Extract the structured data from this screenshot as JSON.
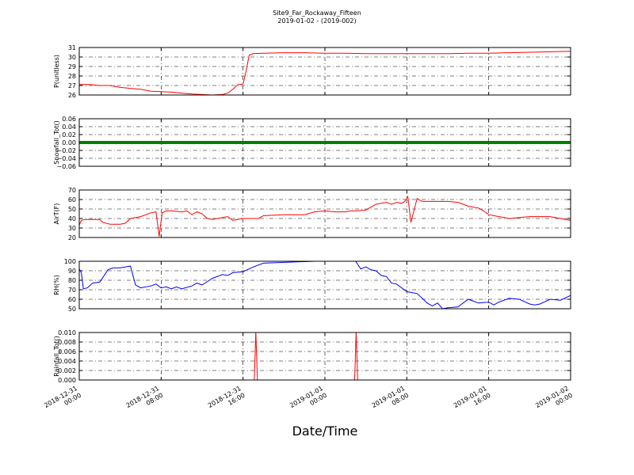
{
  "chart_data": {
    "type": "line",
    "title": "Site9_Far_Rockaway_Fifteen",
    "subtitle": "2019-01-02 - (2019-002)",
    "xlabel": "Date/Time",
    "grid": true,
    "x_range_hours": [
      0,
      48
    ],
    "x_ticks": [
      {
        "h": 0,
        "line1": "2018-12-31",
        "line2": "00:00"
      },
      {
        "h": 8,
        "line1": "2018-12-31",
        "line2": "08:00"
      },
      {
        "h": 16,
        "line1": "2018-12-31",
        "line2": "16:00"
      },
      {
        "h": 24,
        "line1": "2019-01-01",
        "line2": "00:00"
      },
      {
        "h": 32,
        "line1": "2019-01-01",
        "line2": "08:00"
      },
      {
        "h": 40,
        "line1": "2019-01-01",
        "line2": "16:00"
      },
      {
        "h": 48,
        "line1": "2019-01-02",
        "line2": "00:00"
      }
    ],
    "panels": [
      {
        "ylabel": "P(unitless)",
        "ylim": [
          26,
          31
        ],
        "yticks": [
          "26",
          "27",
          "28",
          "29",
          "30",
          "31"
        ],
        "color": "#ff0000",
        "style": "line",
        "x": [
          0,
          1,
          2,
          3,
          4,
          5,
          6,
          7,
          8,
          9,
          10,
          11,
          12,
          13,
          14,
          14.5,
          15,
          15.5,
          16,
          16.3,
          16.6,
          17,
          18,
          20,
          22,
          24,
          26,
          28,
          30,
          32,
          34,
          36,
          38,
          40,
          42,
          44,
          46,
          48
        ],
        "y": [
          27.1,
          27.1,
          27.0,
          27.0,
          26.8,
          26.7,
          26.6,
          26.4,
          26.35,
          26.3,
          26.2,
          26.1,
          26.05,
          26.0,
          26.05,
          26.2,
          26.6,
          27.1,
          27.15,
          28.5,
          30.2,
          30.35,
          30.4,
          30.45,
          30.45,
          30.4,
          30.4,
          30.35,
          30.35,
          30.35,
          30.35,
          30.35,
          30.4,
          30.4,
          30.45,
          30.5,
          30.55,
          30.6
        ]
      },
      {
        "ylabel": "Snowfall_Tot()",
        "ylim": [
          -0.06,
          0.06
        ],
        "yticks": [
          "−0.06",
          "−0.04",
          "−0.02",
          "0.00",
          "0.02",
          "0.04",
          "0.06"
        ],
        "color": "#008000",
        "style": "thick",
        "x": [
          0,
          48
        ],
        "y": [
          0,
          0
        ]
      },
      {
        "ylabel": "AirT(F)",
        "ylim": [
          20,
          70
        ],
        "yticks": [
          "20",
          "30",
          "40",
          "50",
          "60",
          "70"
        ],
        "color": "#ff0000",
        "style": "line",
        "x": [
          0,
          0.2,
          0.6,
          1,
          2,
          2.3,
          3,
          4,
          4.5,
          5,
          6,
          7,
          7.5,
          7.8,
          8.1,
          8.5,
          9,
          10,
          10.5,
          11,
          11.5,
          12,
          12.5,
          13,
          14,
          14.5,
          15,
          16,
          17,
          17.5,
          18,
          20,
          22,
          23,
          24,
          25,
          26,
          26.5,
          27,
          28,
          29,
          30,
          30.5,
          31,
          31.5,
          31.8,
          32.1,
          32.4,
          33,
          33.5,
          34,
          35,
          36,
          37,
          38,
          39,
          39.5,
          40,
          41,
          42,
          43,
          44,
          46,
          47,
          48
        ],
        "y": [
          33,
          38,
          39,
          39,
          39,
          36,
          34,
          34,
          35,
          40,
          42,
          46,
          47,
          21,
          46,
          48,
          48,
          47,
          48,
          44,
          47,
          45,
          40,
          39,
          41,
          42,
          38,
          40,
          40,
          40,
          43,
          44,
          44,
          47,
          48,
          47,
          47,
          48,
          48,
          49,
          55,
          57,
          55,
          57,
          56,
          58,
          63,
          36,
          61,
          58,
          58,
          58,
          58,
          57,
          53,
          51,
          48,
          44,
          42,
          40,
          41,
          42,
          42,
          40,
          38
        ]
      },
      {
        "ylabel": "RH(%)",
        "ylim": [
          50,
          100
        ],
        "yticks": [
          "50",
          "60",
          "70",
          "80",
          "90",
          "100"
        ],
        "color": "#0000ff",
        "style": "line",
        "x": [
          0,
          0.2,
          0.4,
          0.8,
          1.3,
          2,
          2.8,
          3.3,
          4,
          4.5,
          5,
          5.5,
          6,
          7,
          7.5,
          8,
          8.5,
          9,
          9.5,
          10,
          11,
          11.5,
          12,
          13,
          14,
          14.5,
          15,
          16,
          17,
          18,
          23,
          27,
          27.5,
          28,
          28.5,
          29,
          29.5,
          30,
          30.5,
          31,
          32,
          32.5,
          33,
          34,
          34.5,
          35,
          35.5,
          36,
          37,
          38,
          39,
          40,
          40.5,
          41,
          42,
          43,
          44,
          44.5,
          45,
          46,
          47,
          48
        ],
        "y": [
          92,
          88,
          71,
          72,
          77,
          78,
          91,
          93,
          93,
          94,
          95,
          75,
          72,
          74,
          76,
          72,
          73,
          71,
          73,
          71,
          74,
          77,
          75,
          82,
          86,
          85,
          88,
          89,
          94,
          98,
          100,
          100,
          92,
          94,
          91,
          90,
          85,
          84,
          77,
          76,
          68,
          67,
          66,
          56,
          53,
          56,
          50,
          51,
          52,
          60,
          56,
          57,
          54,
          57,
          61,
          60,
          55,
          54,
          55,
          60,
          59,
          64
        ]
      },
      {
        "ylabel": "Rainfall_Tot()",
        "ylim": [
          0,
          0.01
        ],
        "yticks": [
          "0.000",
          "0.002",
          "0.004",
          "0.006",
          "0.008",
          "0.010"
        ],
        "color": "#ff0000",
        "style": "line",
        "x": [
          0,
          17.1,
          17.25,
          17.4,
          26.9,
          27.05,
          27.2,
          48
        ],
        "y": [
          0,
          0,
          0.0102,
          0,
          0,
          0.0102,
          0,
          0
        ]
      }
    ]
  }
}
